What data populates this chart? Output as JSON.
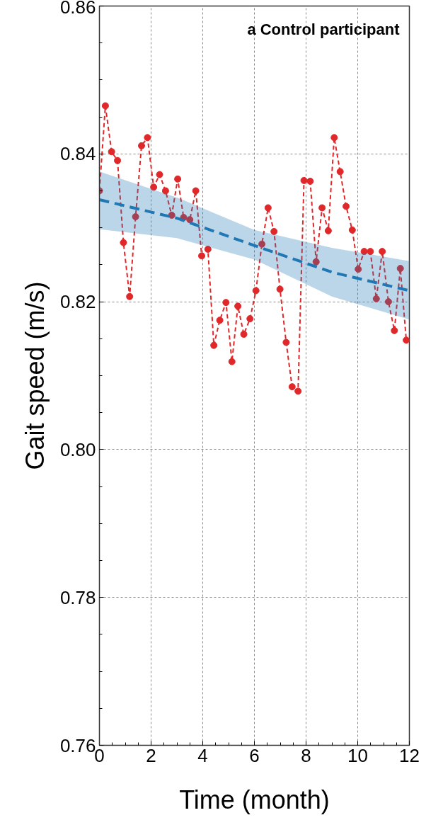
{
  "chart_data": {
    "type": "line",
    "xlabel": "Time (month)",
    "ylabel": "Gait speed (m/s)",
    "annotations": [
      "a Control participant"
    ],
    "xlim": [
      0,
      12
    ],
    "ylim": [
      0.76,
      0.86
    ],
    "xticks": [
      0,
      2,
      4,
      6,
      8,
      10,
      12
    ],
    "yticks": [
      0.76,
      0.78,
      {
        "value": 0.8,
        "label": "0.80"
      },
      0.82,
      0.84,
      0.86
    ],
    "grid": true,
    "series": [
      {
        "color": "#e0282a",
        "marker": "circle",
        "line_style": "dashed",
        "x": [
          0.0,
          0.23,
          0.47,
          0.7,
          0.93,
          1.17,
          1.4,
          1.63,
          1.86,
          2.1,
          2.33,
          2.56,
          2.8,
          3.03,
          3.26,
          3.5,
          3.73,
          3.96,
          4.2,
          4.43,
          4.66,
          4.9,
          5.13,
          5.36,
          5.59,
          5.83,
          6.06,
          6.29,
          6.53,
          6.76,
          6.99,
          7.23,
          7.46,
          7.69,
          7.92,
          8.16,
          8.39,
          8.62,
          8.86,
          9.09,
          9.32,
          9.55,
          9.79,
          10.02,
          10.25,
          10.49,
          10.72,
          10.95,
          11.19,
          11.42,
          11.65,
          11.88
        ],
        "values": [
          0.835,
          0.8465,
          0.8403,
          0.8391,
          0.828,
          0.8207,
          0.8315,
          0.8411,
          0.8422,
          0.8355,
          0.8372,
          0.835,
          0.8317,
          0.8366,
          0.8314,
          0.8311,
          0.835,
          0.8262,
          0.8271,
          0.8141,
          0.8175,
          0.8199,
          0.8119,
          0.8194,
          0.8156,
          0.8177,
          0.8215,
          0.8278,
          0.8327,
          0.8295,
          0.8217,
          0.8145,
          0.8085,
          0.8079,
          0.8364,
          0.8363,
          0.8254,
          0.8327,
          0.8296,
          0.8422,
          0.8376,
          0.8329,
          0.8297,
          0.8244,
          0.8268,
          0.8268,
          0.8204,
          0.8268,
          0.82,
          0.8161,
          0.8245,
          0.8148
        ]
      },
      {
        "color": "#1f77b4",
        "marker": "none",
        "line_style": "dashed",
        "x": [
          0,
          3,
          6,
          9,
          12
        ],
        "values": [
          0.8338,
          0.8313,
          0.8276,
          0.824,
          0.8215
        ],
        "lower": [
          0.8298,
          0.8286,
          0.8257,
          0.8207,
          0.8176
        ],
        "upper": [
          0.8376,
          0.8341,
          0.8297,
          0.8273,
          0.8255
        ]
      }
    ]
  }
}
